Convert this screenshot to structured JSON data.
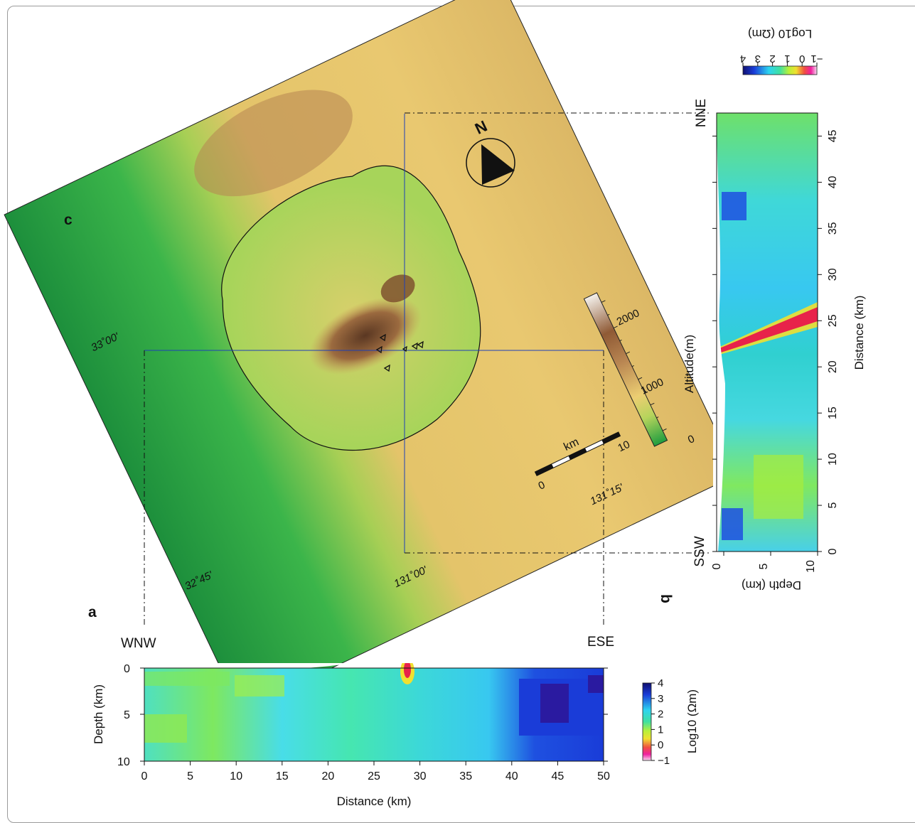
{
  "panel_labels": {
    "a": "a",
    "b": "b",
    "c": "c"
  },
  "map": {
    "north_label": "N",
    "altitude_title": "Altitude(m)",
    "altitude_ticks": [
      "1000",
      "2000"
    ],
    "altitude_zero": "0",
    "scale_unit": "km",
    "scale_ticks": [
      "0",
      "10"
    ],
    "lat_labels": [
      "33˚00'",
      "32˚45'"
    ],
    "lon_labels": [
      "131˚00'",
      "131˚15'"
    ]
  },
  "profile_a": {
    "left_label": "WNW",
    "right_label": "ESE",
    "ylabel": "Depth (km)",
    "xlabel": "Distance (km)",
    "y_ticks": [
      "0",
      "5",
      "10"
    ],
    "x_ticks": [
      "0",
      "5",
      "10",
      "15",
      "20",
      "25",
      "30",
      "35",
      "40",
      "45",
      "50"
    ],
    "colorbar_title": "Log10 (Ωm)",
    "colorbar_ticks": [
      "4",
      "3",
      "2",
      "1",
      "0",
      "−1"
    ]
  },
  "profile_b": {
    "top_label": "NNE",
    "bottom_label": "SSW",
    "ylabel": "Distance (km)",
    "xlabel": "Depth (km)",
    "dist_ticks": [
      "0",
      "5",
      "10",
      "15",
      "20",
      "25",
      "30",
      "35",
      "40",
      "45"
    ],
    "depth_ticks": [
      "0",
      "5",
      "10"
    ],
    "colorbar_title": "Log10 (Ωm)",
    "colorbar_ticks": [
      "4",
      "3",
      "2",
      "1",
      "0",
      "−1"
    ]
  },
  "colors": {
    "lowland_green": "#22a84a",
    "upland_yellow": "#e9c870",
    "peak_brown": "#8c5a36",
    "grid_blue": "#1e3fb8",
    "resist_blue": "#1a3cd8",
    "conductive_red": "#e8224a"
  }
}
